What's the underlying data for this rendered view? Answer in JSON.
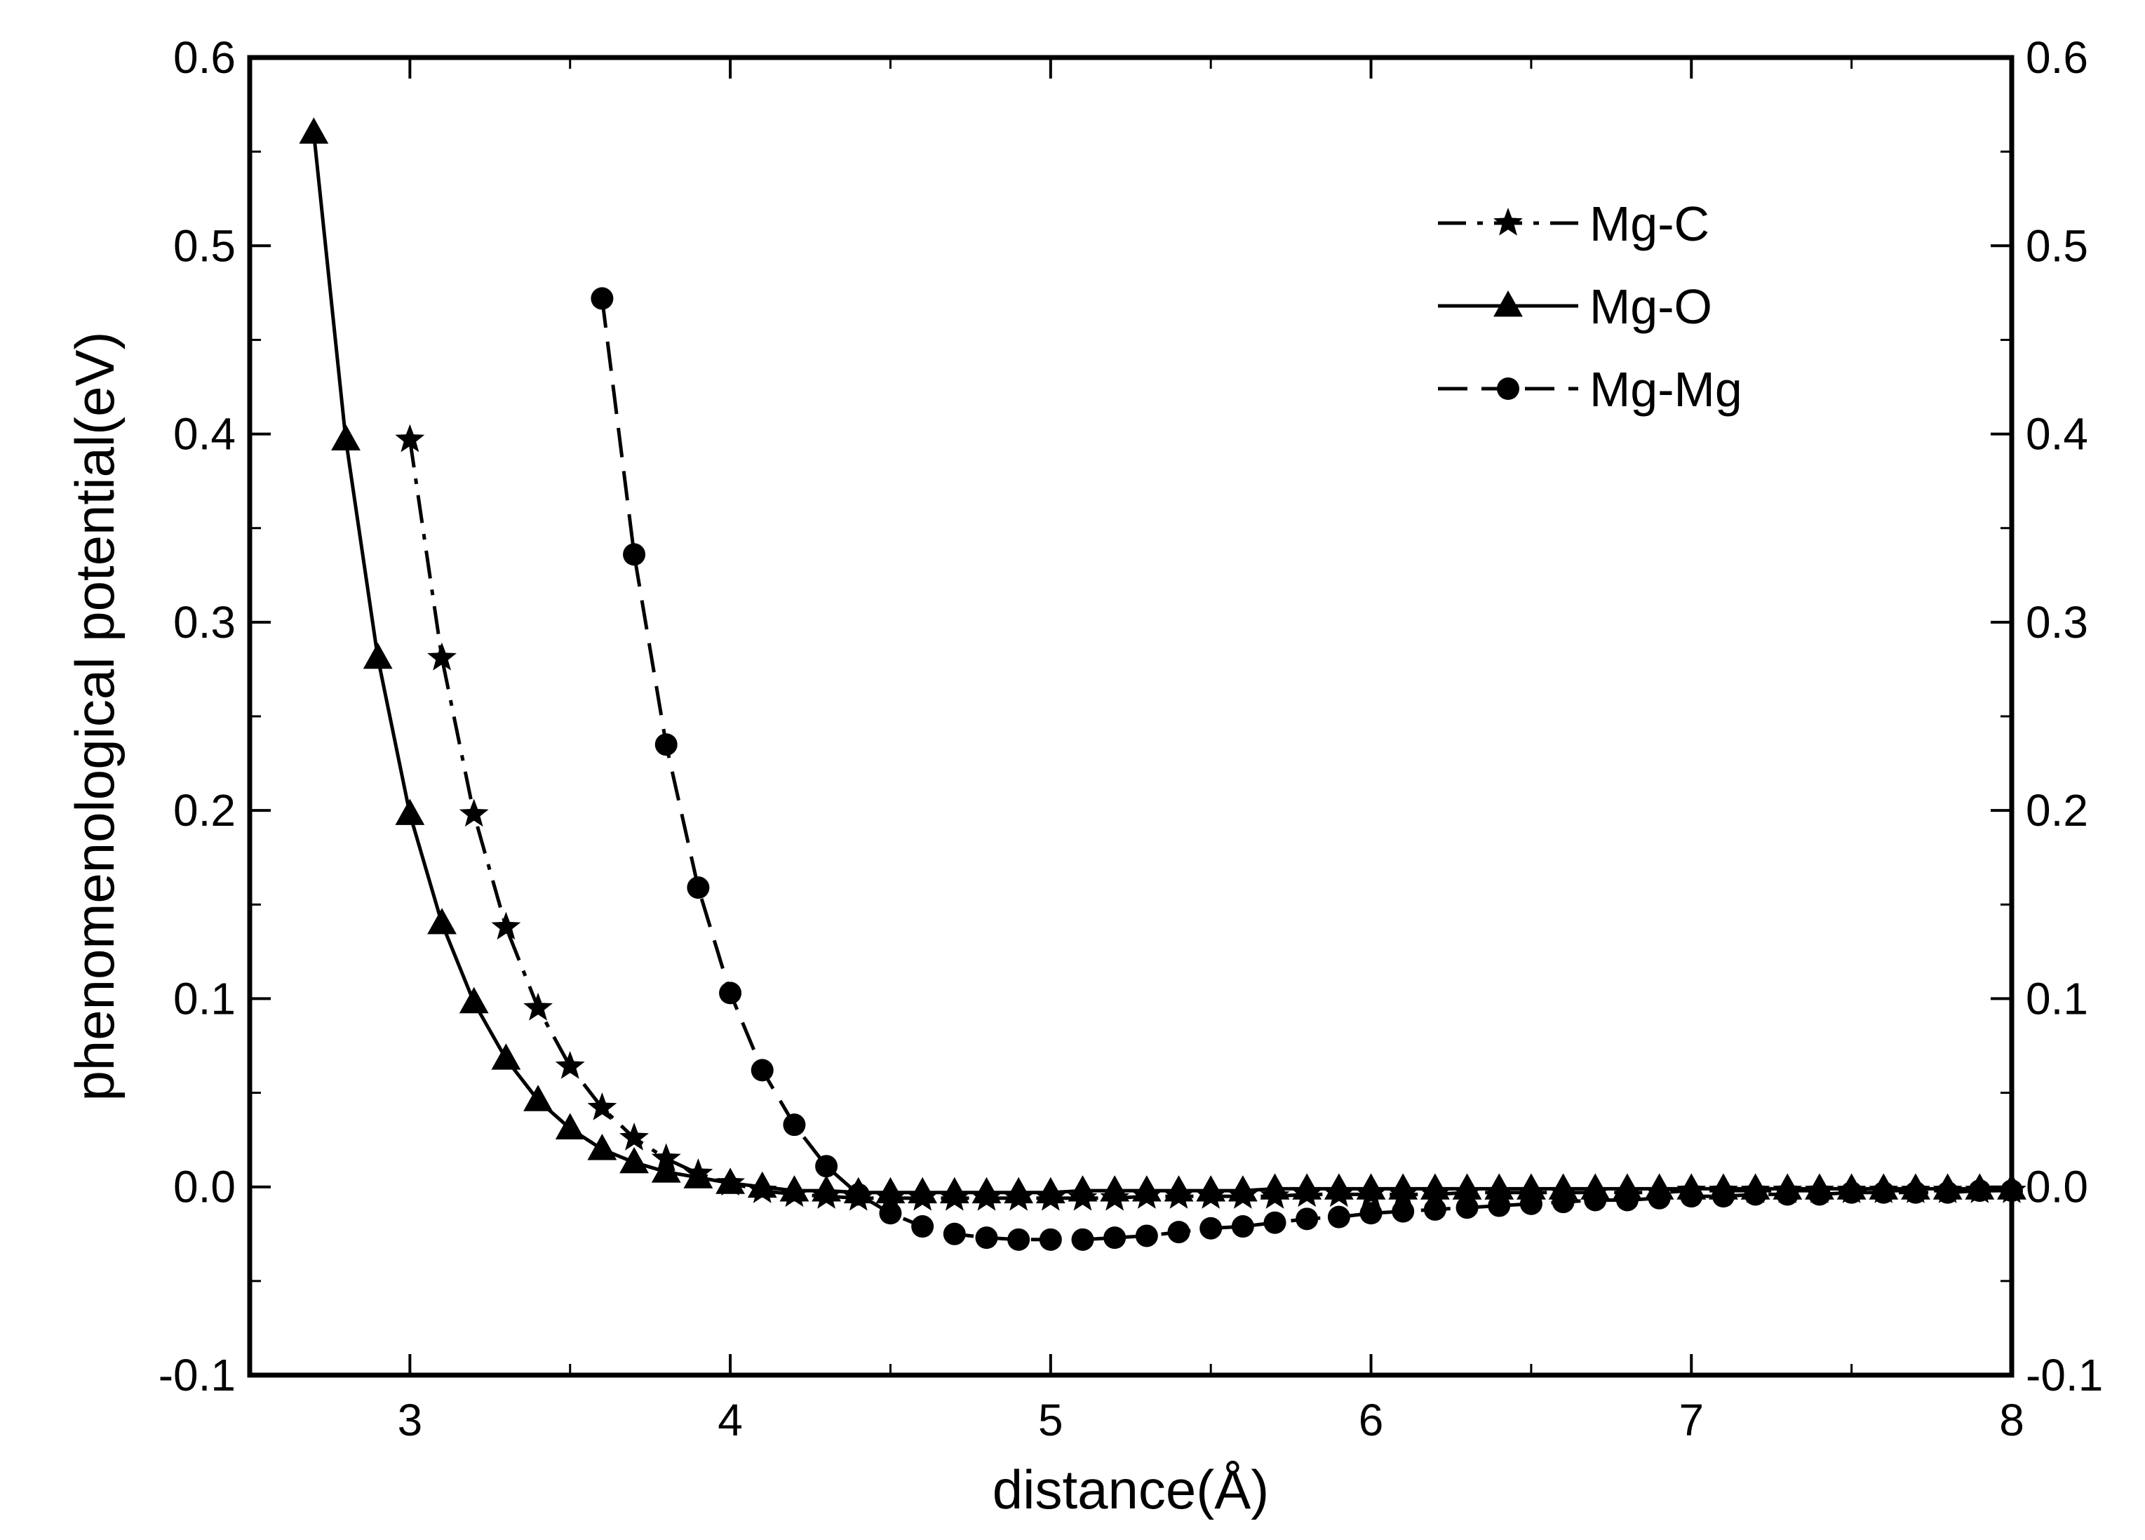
{
  "chart_data": {
    "type": "line",
    "title": "",
    "xlabel": "distance(Å)",
    "ylabel": "phenomenological potential(eV)",
    "xlim": [
      2.5,
      8
    ],
    "ylim": [
      -0.1,
      0.6
    ],
    "grid": false,
    "legend_position": "top-right",
    "x_ticks": [
      3,
      4,
      5,
      6,
      7,
      8
    ],
    "x_tick_labels": [
      "3",
      "4",
      "5",
      "6",
      "7",
      "8"
    ],
    "y_ticks": [
      -0.1,
      0.0,
      0.1,
      0.2,
      0.3,
      0.4,
      0.5,
      0.6
    ],
    "y_tick_labels": [
      "-0.1",
      "0.0",
      "0.1",
      "0.2",
      "0.3",
      "0.4",
      "0.5",
      "0.6"
    ],
    "y2_tick_labels": [
      "-0.1",
      "0.0",
      "0.1",
      "0.2",
      "0.3",
      "0.4",
      "0.5",
      "0.6"
    ],
    "series": [
      {
        "name": "Mg-C",
        "line_style": "dash-dot",
        "marker": "star",
        "color": "#000000",
        "x": [
          3.0,
          3.1,
          3.2,
          3.3,
          3.4,
          3.5,
          3.6,
          3.7,
          3.8,
          3.9,
          4.0,
          4.1,
          4.2,
          4.3,
          4.4,
          4.5,
          4.6,
          4.7,
          4.8,
          4.9,
          5.0,
          5.1,
          5.2,
          5.3,
          5.4,
          5.5,
          5.6,
          5.7,
          5.8,
          5.9,
          6.0,
          6.1,
          6.2,
          6.3,
          6.4,
          6.5,
          6.6,
          6.7,
          6.8,
          6.9,
          7.0,
          7.1,
          7.2,
          7.3,
          7.4,
          7.5,
          7.6,
          7.7,
          7.8,
          7.9,
          8.0
        ],
        "values": [
          0.397,
          0.281,
          0.198,
          0.138,
          0.095,
          0.064,
          0.042,
          0.026,
          0.015,
          0.007,
          0.002,
          -0.002,
          -0.004,
          -0.005,
          -0.006,
          -0.006,
          -0.006,
          -0.006,
          -0.006,
          -0.006,
          -0.006,
          -0.006,
          -0.006,
          -0.005,
          -0.005,
          -0.005,
          -0.005,
          -0.005,
          -0.004,
          -0.004,
          -0.004,
          -0.004,
          -0.004,
          -0.003,
          -0.003,
          -0.003,
          -0.003,
          -0.003,
          -0.003,
          -0.003,
          -0.002,
          -0.002,
          -0.002,
          -0.002,
          -0.002,
          -0.002,
          -0.002,
          -0.002,
          -0.002,
          -0.002,
          -0.002
        ]
      },
      {
        "name": "Mg-O",
        "line_style": "solid",
        "marker": "triangle",
        "color": "#000000",
        "x": [
          2.7,
          2.8,
          2.9,
          3.0,
          3.1,
          3.2,
          3.3,
          3.4,
          3.5,
          3.6,
          3.7,
          3.8,
          3.9,
          4.0,
          4.1,
          4.2,
          4.3,
          4.4,
          4.5,
          4.6,
          4.7,
          4.8,
          4.9,
          5.0,
          5.1,
          5.2,
          5.3,
          5.4,
          5.5,
          5.6,
          5.7,
          5.8,
          5.9,
          6.0,
          6.1,
          6.2,
          6.3,
          6.4,
          6.5,
          6.6,
          6.7,
          6.8,
          6.9,
          7.0,
          7.1,
          7.2,
          7.3,
          7.4,
          7.5,
          7.6,
          7.7,
          7.8,
          7.9,
          8.0
        ],
        "values": [
          0.56,
          0.397,
          0.281,
          0.198,
          0.14,
          0.098,
          0.068,
          0.046,
          0.031,
          0.02,
          0.013,
          0.008,
          0.005,
          0.002,
          0.0,
          -0.002,
          -0.002,
          -0.003,
          -0.003,
          -0.003,
          -0.003,
          -0.003,
          -0.003,
          -0.003,
          -0.002,
          -0.002,
          -0.002,
          -0.002,
          -0.002,
          -0.002,
          -0.001,
          -0.001,
          -0.001,
          -0.001,
          -0.001,
          -0.001,
          -0.001,
          -0.001,
          -0.001,
          -0.001,
          -0.001,
          -0.001,
          -0.001,
          -0.001,
          -0.001,
          -0.001,
          -0.001,
          -0.001,
          -0.001,
          -0.001,
          -0.001,
          -0.001,
          -0.001,
          -0.001
        ]
      },
      {
        "name": "Mg-Mg",
        "line_style": "dashed",
        "marker": "circle",
        "color": "#000000",
        "x": [
          3.6,
          3.7,
          3.8,
          3.9,
          4.0,
          4.1,
          4.2,
          4.3,
          4.4,
          4.5,
          4.6,
          4.7,
          4.8,
          4.9,
          5.0,
          5.1,
          5.2,
          5.3,
          5.4,
          5.5,
          5.6,
          5.7,
          5.8,
          5.9,
          6.0,
          6.1,
          6.2,
          6.3,
          6.4,
          6.5,
          6.6,
          6.7,
          6.8,
          6.9,
          7.0,
          7.1,
          7.2,
          7.3,
          7.4,
          7.5,
          7.6,
          7.7,
          7.8,
          7.9,
          8.0
        ],
        "values": [
          0.472,
          0.336,
          0.235,
          0.159,
          0.103,
          0.062,
          0.033,
          0.011,
          -0.004,
          -0.014,
          -0.021,
          -0.025,
          -0.027,
          -0.028,
          -0.028,
          -0.028,
          -0.027,
          -0.026,
          -0.024,
          -0.022,
          -0.021,
          -0.019,
          -0.017,
          -0.016,
          -0.014,
          -0.013,
          -0.012,
          -0.011,
          -0.01,
          -0.009,
          -0.008,
          -0.007,
          -0.007,
          -0.006,
          -0.005,
          -0.005,
          -0.004,
          -0.004,
          -0.004,
          -0.003,
          -0.003,
          -0.003,
          -0.003,
          -0.002,
          -0.002
        ]
      }
    ]
  }
}
